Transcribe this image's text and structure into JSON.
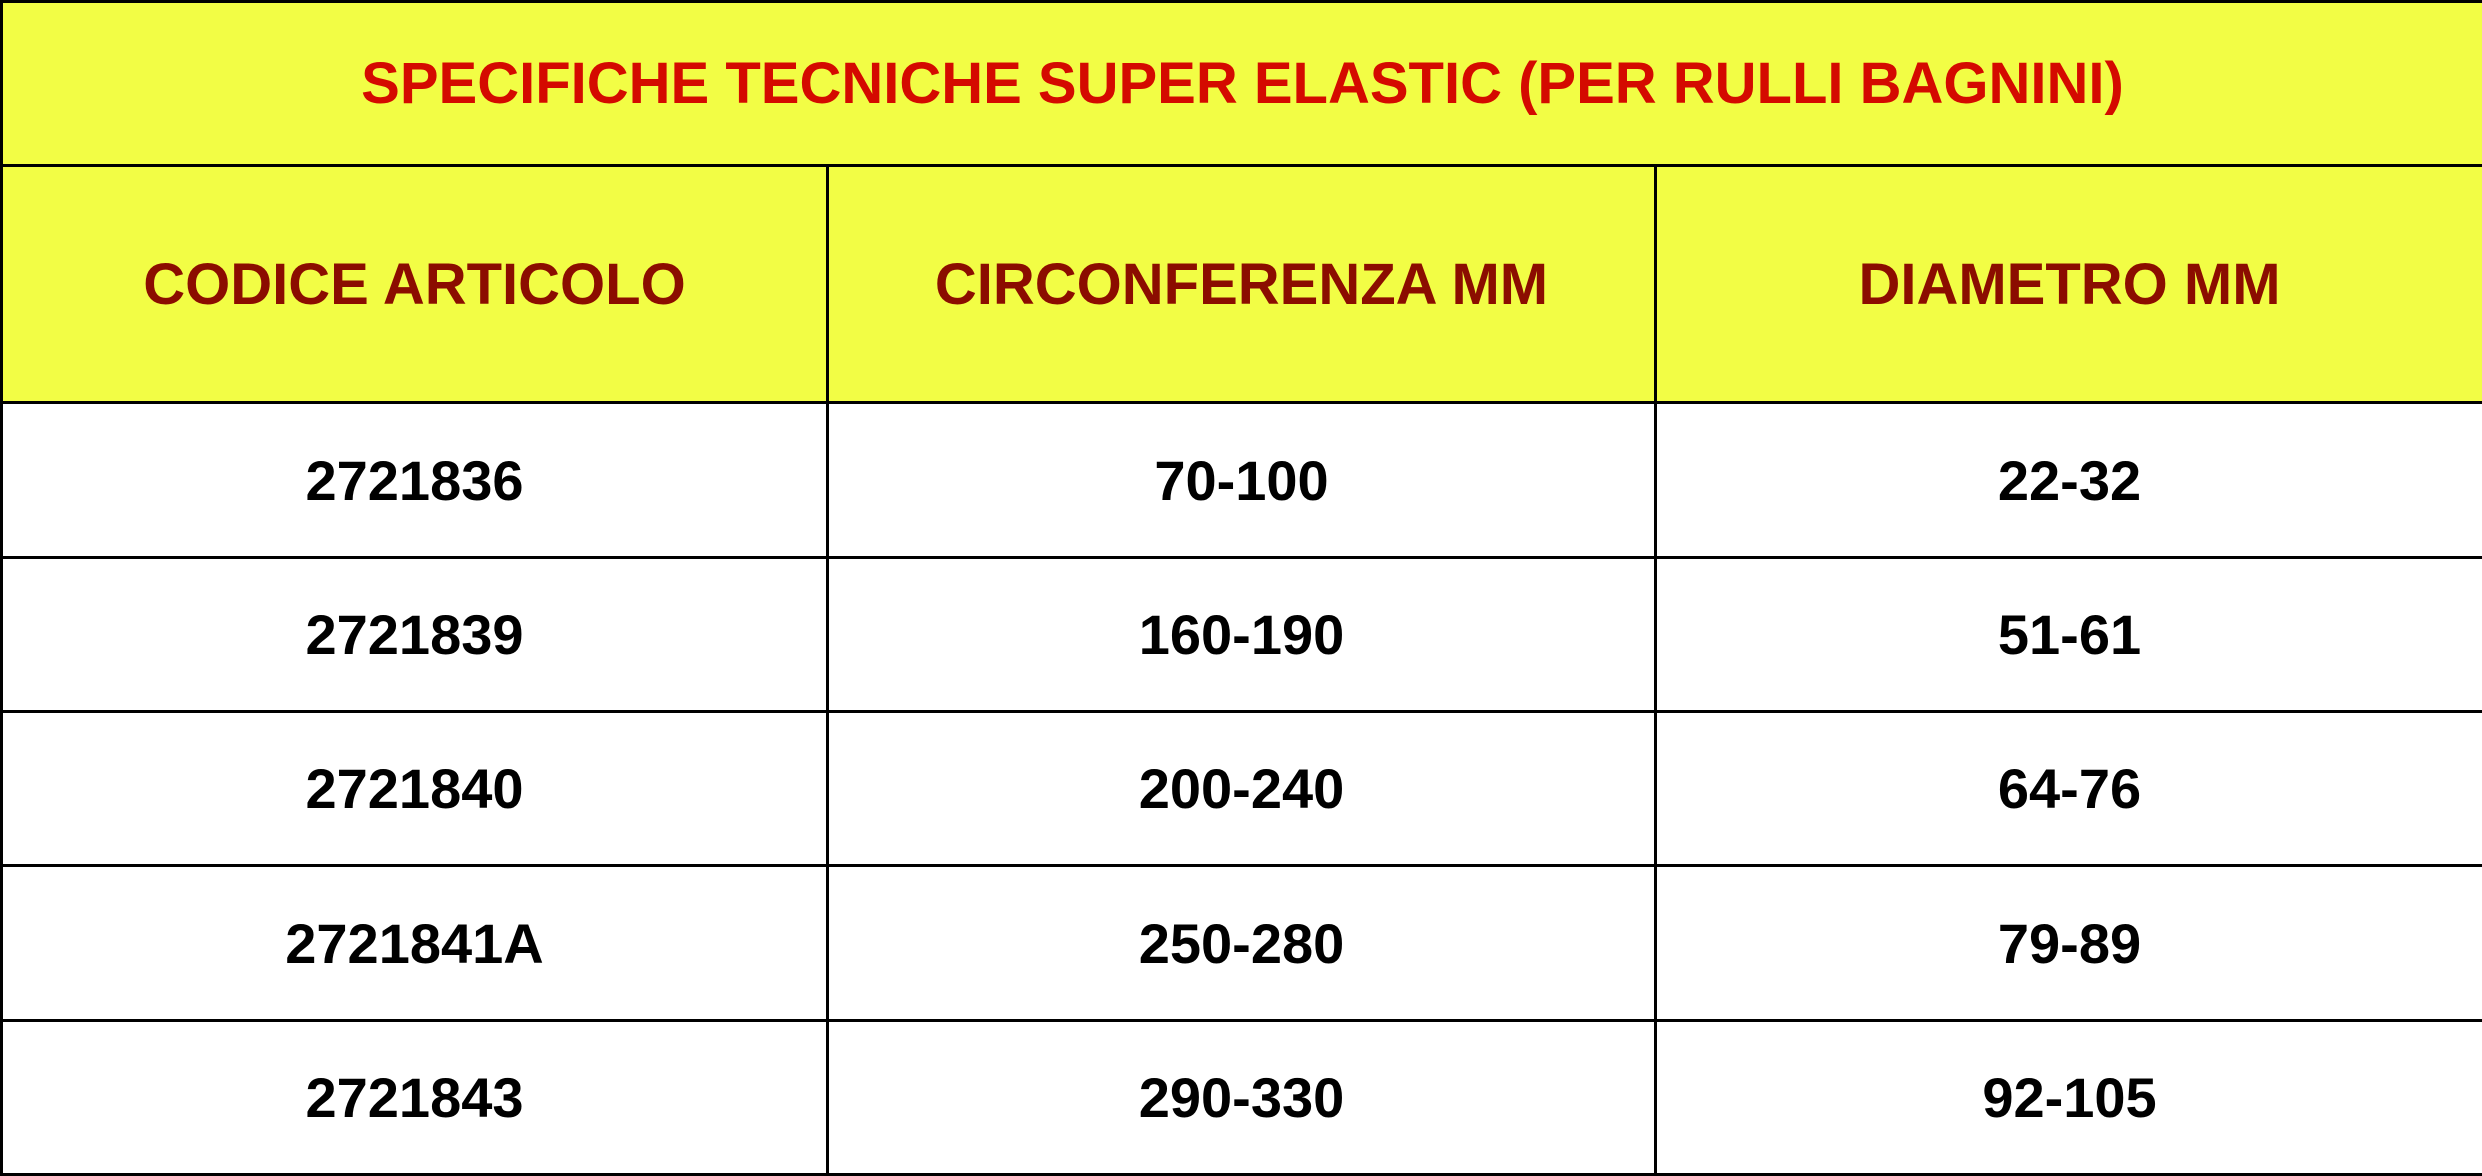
{
  "title": "SPECIFICHE TECNICHE SUPER ELASTIC (PER RULLI BAGNINI)",
  "columns": [
    "CODICE ARTICOLO",
    "CIRCONFERENZA MM",
    "DIAMETRO MM"
  ],
  "rows": [
    [
      "2721836",
      "70-100",
      "22-32"
    ],
    [
      "2721839",
      "160-190",
      "51-61"
    ],
    [
      "2721840",
      "200-240",
      "64-76"
    ],
    [
      "2721841A",
      "250-280",
      "79-89"
    ],
    [
      "2721843",
      "290-330",
      "92-105"
    ]
  ],
  "colors": {
    "header_bg": "#f2fd45",
    "title_text": "#d40a00",
    "header_text": "#8b0d00"
  }
}
